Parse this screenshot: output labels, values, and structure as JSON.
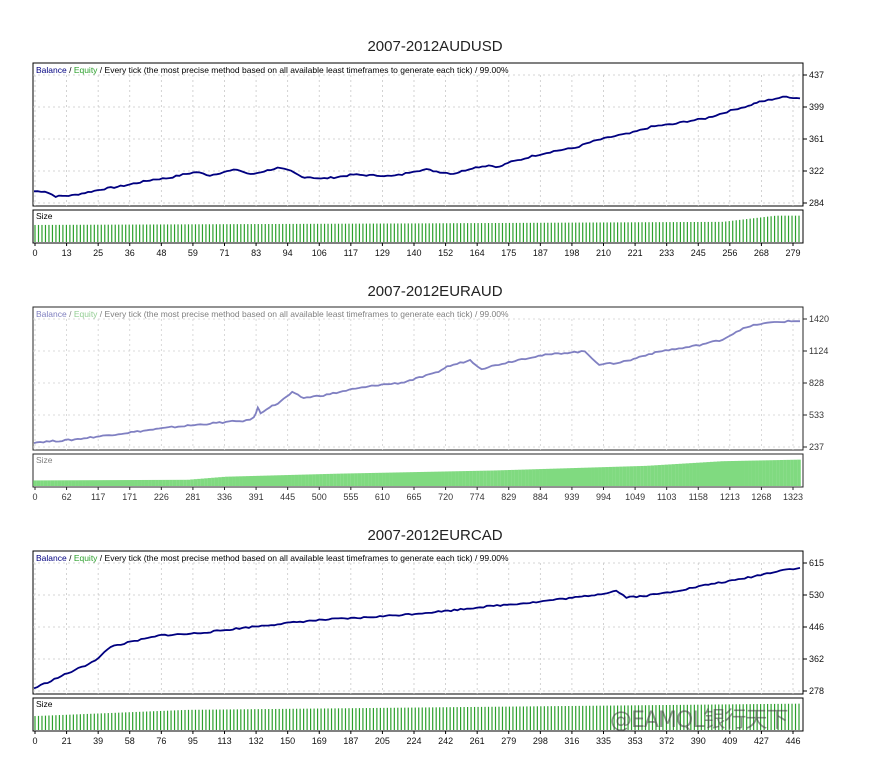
{
  "chart_data": [
    {
      "type": "line",
      "title": "2007-2012AUDUSD",
      "legend": {
        "balance": "Balance",
        "equity": "Equity",
        "separator": "/",
        "model": "Every tick (the most precise method based on all available least timeframes to generate each tick)",
        "quality": "99.00%"
      },
      "size_label": "Size",
      "line_color": "#000080",
      "bar_color": "#2ca02c",
      "faded": false,
      "yticks": [
        "437",
        "399",
        "361",
        "322",
        "284"
      ],
      "ylim": [
        284,
        437
      ],
      "xticks": [
        "0",
        "13",
        "25",
        "36",
        "48",
        "59",
        "71",
        "83",
        "94",
        "106",
        "117",
        "129",
        "140",
        "152",
        "164",
        "175",
        "187",
        "198",
        "210",
        "221",
        "233",
        "245",
        "256",
        "268",
        "279"
      ],
      "x_max": 283,
      "balance_points": [
        [
          0,
          298
        ],
        [
          4,
          298
        ],
        [
          8,
          292
        ],
        [
          14,
          293
        ],
        [
          20,
          297
        ],
        [
          26,
          301
        ],
        [
          32,
          304
        ],
        [
          38,
          308
        ],
        [
          44,
          312
        ],
        [
          50,
          314
        ],
        [
          55,
          318
        ],
        [
          60,
          321
        ],
        [
          65,
          317
        ],
        [
          70,
          321
        ],
        [
          75,
          324
        ],
        [
          80,
          318
        ],
        [
          85,
          322
        ],
        [
          90,
          326
        ],
        [
          95,
          322
        ],
        [
          99,
          315
        ],
        [
          102,
          315
        ],
        [
          106,
          313
        ],
        [
          112,
          315
        ],
        [
          118,
          318
        ],
        [
          124,
          317
        ],
        [
          128,
          317
        ],
        [
          132,
          316
        ],
        [
          136,
          318
        ],
        [
          140,
          322
        ],
        [
          145,
          324
        ],
        [
          150,
          321
        ],
        [
          155,
          319
        ],
        [
          158,
          322
        ],
        [
          162,
          326
        ],
        [
          168,
          329
        ],
        [
          172,
          327
        ],
        [
          175,
          332
        ],
        [
          180,
          336
        ],
        [
          184,
          340
        ],
        [
          188,
          343
        ],
        [
          192,
          346
        ],
        [
          196,
          348
        ],
        [
          200,
          350
        ],
        [
          204,
          355
        ],
        [
          208,
          359
        ],
        [
          212,
          362
        ],
        [
          216,
          365
        ],
        [
          220,
          367
        ],
        [
          224,
          371
        ],
        [
          228,
          375
        ],
        [
          232,
          377
        ],
        [
          236,
          378
        ],
        [
          240,
          381
        ],
        [
          244,
          383
        ],
        [
          248,
          385
        ],
        [
          252,
          389
        ],
        [
          256,
          393
        ],
        [
          260,
          397
        ],
        [
          264,
          400
        ],
        [
          267,
          404
        ],
        [
          270,
          406
        ],
        [
          274,
          409
        ],
        [
          278,
          411
        ],
        [
          283,
          409
        ]
      ],
      "size_bars": [
        [
          0,
          0.55
        ],
        [
          0.5,
          0.6
        ],
        [
          0.9,
          0.65
        ],
        [
          0.97,
          0.85
        ],
        [
          1,
          0.85
        ]
      ]
    },
    {
      "type": "line",
      "title": "2007-2012EURAUD",
      "legend": {
        "balance": "Balance",
        "equity": "Equity",
        "separator": "/",
        "model": "Every tick (the most precise method based on all available least timeframes to generate each tick)",
        "quality": "99.00%"
      },
      "size_label": "Size",
      "line_color": "#6a6ab8",
      "bar_color": "#6bd46b",
      "faded": true,
      "yticks": [
        "1420",
        "1124",
        "828",
        "533",
        "237"
      ],
      "ylim": [
        237,
        1420
      ],
      "xticks": [
        "0",
        "62",
        "117",
        "171",
        "226",
        "281",
        "336",
        "391",
        "445",
        "500",
        "555",
        "610",
        "665",
        "720",
        "774",
        "829",
        "884",
        "939",
        "994",
        "1049",
        "1103",
        "1158",
        "1213",
        "1268",
        "1323"
      ],
      "x_max": 1335,
      "balance_points": [
        [
          0,
          280
        ],
        [
          60,
          300
        ],
        [
          120,
          340
        ],
        [
          180,
          380
        ],
        [
          240,
          420
        ],
        [
          340,
          470
        ],
        [
          370,
          480
        ],
        [
          383,
          505
        ],
        [
          390,
          600
        ],
        [
          395,
          550
        ],
        [
          405,
          590
        ],
        [
          425,
          640
        ],
        [
          440,
          700
        ],
        [
          450,
          740
        ],
        [
          470,
          690
        ],
        [
          510,
          720
        ],
        [
          555,
          770
        ],
        [
          600,
          810
        ],
        [
          640,
          830
        ],
        [
          660,
          860
        ],
        [
          700,
          920
        ],
        [
          720,
          980
        ],
        [
          760,
          1040
        ],
        [
          780,
          960
        ],
        [
          810,
          1000
        ],
        [
          850,
          1050
        ],
        [
          880,
          1080
        ],
        [
          930,
          1110
        ],
        [
          960,
          1120
        ],
        [
          985,
          1000
        ],
        [
          1010,
          1010
        ],
        [
          1040,
          1040
        ],
        [
          1060,
          1080
        ],
        [
          1100,
          1130
        ],
        [
          1130,
          1150
        ],
        [
          1160,
          1180
        ],
        [
          1200,
          1230
        ],
        [
          1230,
          1320
        ],
        [
          1260,
          1370
        ],
        [
          1290,
          1390
        ],
        [
          1320,
          1400
        ],
        [
          1335,
          1400
        ]
      ],
      "size_bars": [
        [
          0,
          0.18
        ],
        [
          0.2,
          0.2
        ],
        [
          0.25,
          0.3
        ],
        [
          0.4,
          0.4
        ],
        [
          0.6,
          0.5
        ],
        [
          0.8,
          0.65
        ],
        [
          0.9,
          0.8
        ],
        [
          1,
          0.85
        ]
      ]
    },
    {
      "type": "line",
      "title": "2007-2012EURCAD",
      "legend": {
        "balance": "Balance",
        "equity": "Equity",
        "separator": "/",
        "model": "Every tick (the most precise method based on all available least timeframes to generate each tick)",
        "quality": "99.00%"
      },
      "size_label": "Size",
      "line_color": "#000080",
      "bar_color": "#2ca02c",
      "faded": false,
      "yticks": [
        "615",
        "530",
        "446",
        "362",
        "278"
      ],
      "ylim": [
        278,
        615
      ],
      "xticks": [
        "0",
        "21",
        "39",
        "58",
        "76",
        "95",
        "113",
        "132",
        "150",
        "169",
        "187",
        "205",
        "224",
        "242",
        "261",
        "279",
        "298",
        "316",
        "335",
        "353",
        "372",
        "390",
        "409",
        "427",
        "446"
      ],
      "x_max": 450,
      "balance_points": [
        [
          0,
          285
        ],
        [
          10,
          305
        ],
        [
          20,
          325
        ],
        [
          30,
          345
        ],
        [
          38,
          365
        ],
        [
          45,
          395
        ],
        [
          55,
          405
        ],
        [
          65,
          415
        ],
        [
          75,
          425
        ],
        [
          90,
          428
        ],
        [
          100,
          432
        ],
        [
          115,
          440
        ],
        [
          130,
          448
        ],
        [
          145,
          455
        ],
        [
          160,
          462
        ],
        [
          175,
          467
        ],
        [
          190,
          470
        ],
        [
          205,
          475
        ],
        [
          220,
          480
        ],
        [
          230,
          484
        ],
        [
          245,
          490
        ],
        [
          260,
          498
        ],
        [
          272,
          503
        ],
        [
          282,
          507
        ],
        [
          295,
          512
        ],
        [
          305,
          518
        ],
        [
          320,
          525
        ],
        [
          335,
          535
        ],
        [
          342,
          542
        ],
        [
          348,
          525
        ],
        [
          358,
          528
        ],
        [
          372,
          537
        ],
        [
          385,
          548
        ],
        [
          398,
          560
        ],
        [
          410,
          568
        ],
        [
          425,
          582
        ],
        [
          440,
          597
        ],
        [
          450,
          602
        ]
      ],
      "size_bars": [
        [
          0,
          0.45
        ],
        [
          0.1,
          0.55
        ],
        [
          0.2,
          0.65
        ],
        [
          0.4,
          0.7
        ],
        [
          0.6,
          0.75
        ],
        [
          0.8,
          0.8
        ],
        [
          1,
          0.85
        ]
      ]
    }
  ],
  "watermark": "@EAMQL银行天下"
}
